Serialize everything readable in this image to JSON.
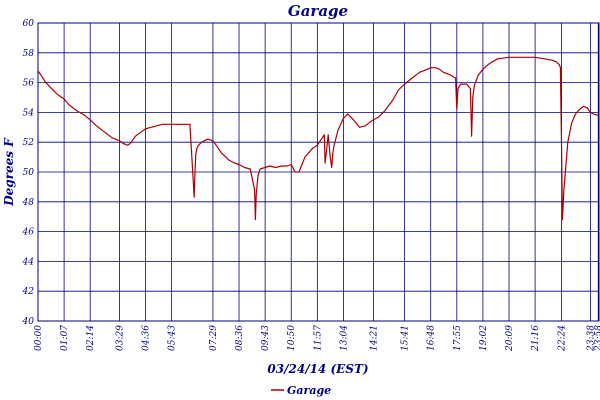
{
  "chart_data": {
    "type": "line",
    "title": "Garage",
    "xlabel": "03/24/14 (EST)",
    "ylabel": "Degrees F",
    "ylim": [
      40,
      60
    ],
    "yticks": [
      40,
      42,
      44,
      46,
      48,
      50,
      52,
      54,
      56,
      58,
      60
    ],
    "xlim_minutes": [
      0,
      1440
    ],
    "xticks": [
      "00:00",
      "01:07",
      "02:14",
      "03:29",
      "04:36",
      "05:43",
      "07:29",
      "08:36",
      "09:43",
      "10:50",
      "11:57",
      "13:04",
      "14:21",
      "15:41",
      "16:48",
      "17:55",
      "19:02",
      "20:09",
      "21:16",
      "22:24",
      "23:38",
      "23:58"
    ],
    "grid": true,
    "legend_position": "bottom",
    "colors": {
      "series": "#aa0000",
      "grid": "#000080",
      "text": "#000080"
    },
    "series": [
      {
        "name": "Garage",
        "x": [
          "00:00",
          "00:10",
          "00:20",
          "00:35",
          "00:50",
          "01:07",
          "01:20",
          "01:40",
          "02:00",
          "02:14",
          "02:30",
          "02:50",
          "03:10",
          "03:29",
          "03:40",
          "03:50",
          "03:56",
          "04:02",
          "04:10",
          "04:20",
          "04:36",
          "04:50",
          "05:05",
          "05:20",
          "05:43",
          "06:00",
          "06:15",
          "06:30",
          "06:41",
          "06:43",
          "06:45",
          "06:48",
          "06:52",
          "07:00",
          "07:15",
          "07:29",
          "07:40",
          "07:50",
          "08:10",
          "08:25",
          "08:36",
          "08:50",
          "09:05",
          "09:16",
          "09:18",
          "09:20",
          "09:25",
          "09:30",
          "09:43",
          "09:55",
          "10:10",
          "10:25",
          "10:40",
          "10:50",
          "11:00",
          "11:10",
          "11:25",
          "11:45",
          "11:57",
          "12:10",
          "12:15",
          "12:17",
          "12:20",
          "12:25",
          "12:30",
          "12:34",
          "12:37",
          "12:40",
          "12:50",
          "13:04",
          "13:15",
          "13:30",
          "13:45",
          "14:00",
          "14:10",
          "14:21",
          "14:35",
          "14:50",
          "15:10",
          "15:25",
          "15:41",
          "16:00",
          "16:20",
          "16:40",
          "16:48",
          "17:00",
          "17:10",
          "17:20",
          "17:40",
          "17:52",
          "17:55",
          "17:58",
          "18:05",
          "18:20",
          "18:30",
          "18:33",
          "18:36",
          "18:40",
          "18:50",
          "19:02",
          "19:20",
          "19:40",
          "20:09",
          "20:30",
          "20:50",
          "21:16",
          "21:40",
          "22:00",
          "22:10",
          "22:18",
          "22:21",
          "22:24",
          "22:26",
          "22:30",
          "22:40",
          "22:50",
          "23:00",
          "23:10",
          "23:20",
          "23:30",
          "23:38",
          "23:45",
          "23:58"
        ],
        "values": [
          56.8,
          56.4,
          56.0,
          55.6,
          55.2,
          54.9,
          54.5,
          54.1,
          53.8,
          53.5,
          53.1,
          52.7,
          52.3,
          52.1,
          51.9,
          51.8,
          51.9,
          52.1,
          52.4,
          52.6,
          52.9,
          53.0,
          53.1,
          53.2,
          53.2,
          53.2,
          53.2,
          53.2,
          48.3,
          50.0,
          51.2,
          51.6,
          51.8,
          52.0,
          52.2,
          52.1,
          51.7,
          51.3,
          50.8,
          50.6,
          50.5,
          50.3,
          50.2,
          48.8,
          46.8,
          48.5,
          49.8,
          50.2,
          50.3,
          50.4,
          50.3,
          50.4,
          50.4,
          50.5,
          50.0,
          50.0,
          51.0,
          51.6,
          51.8,
          52.3,
          52.5,
          50.6,
          51.3,
          52.5,
          51.0,
          50.3,
          51.3,
          51.8,
          52.8,
          53.6,
          53.9,
          53.5,
          53.0,
          53.1,
          53.3,
          53.5,
          53.7,
          54.1,
          54.8,
          55.5,
          55.9,
          56.3,
          56.7,
          56.9,
          57.0,
          57.0,
          56.9,
          56.7,
          56.5,
          56.3,
          54.2,
          55.6,
          55.9,
          55.9,
          55.6,
          52.4,
          55.0,
          55.8,
          56.5,
          56.9,
          57.3,
          57.6,
          57.7,
          57.7,
          57.7,
          57.7,
          57.6,
          57.5,
          57.4,
          57.2,
          57.0,
          51.5,
          46.8,
          48.8,
          52.0,
          53.3,
          53.9,
          54.2,
          54.4,
          54.3,
          54.0,
          53.9,
          53.8
        ]
      }
    ]
  }
}
